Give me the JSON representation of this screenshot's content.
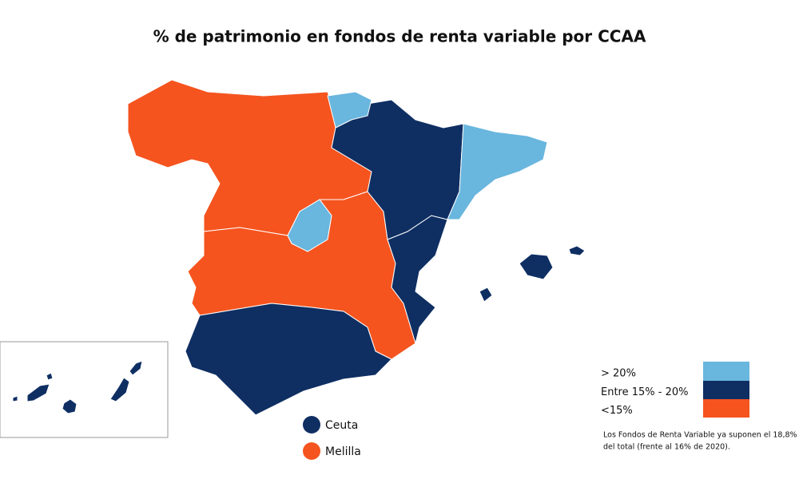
{
  "title": "% de patrimonio en fondos de renta variable por CCAA",
  "legend": [
    {
      "label": "> 20%",
      "color": "#69b6de"
    },
    {
      "label": "Entre 15% - 20%",
      "color": "#0f2f63"
    },
    {
      "label": "<15%",
      "color": "#f5541f"
    }
  ],
  "cities": [
    {
      "label": "Ceuta",
      "color": "#0f2f63"
    },
    {
      "label": "Melilla",
      "color": "#f5541f"
    }
  ],
  "note": [
    "Los Fondos de Renta Variable ya suponen el 18,8%",
    "del total (frente al 16% de 2020)."
  ]
}
